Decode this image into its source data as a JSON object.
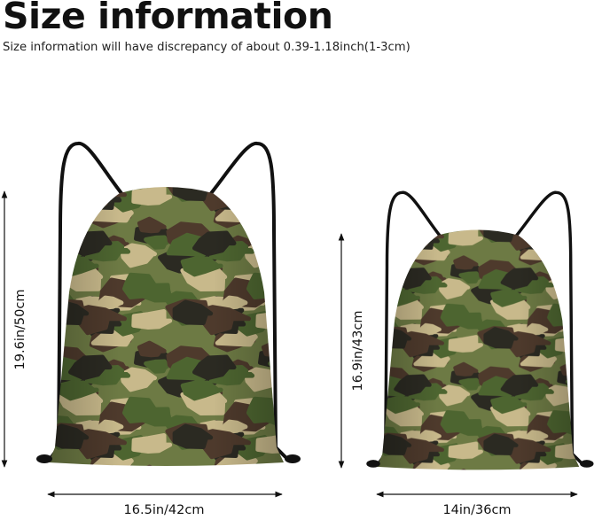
{
  "header": {
    "title": "Size information",
    "subtitle": "Size information will have discrepancy of about 0.39-1.18inch(1-3cm)"
  },
  "bags": [
    {
      "name": "large",
      "height_label": "19.6in/50cm",
      "width_label": "16.5in/42cm"
    },
    {
      "name": "small",
      "height_label": "16.9in/43cm",
      "width_label": "14in/36cm"
    }
  ],
  "colors": {
    "camo_dark": "#2b2a22",
    "camo_brown": "#4e3a2c",
    "camo_green": "#4d6530",
    "camo_olive": "#6d7a44",
    "camo_tan": "#c8b98b",
    "cord": "#111111"
  }
}
